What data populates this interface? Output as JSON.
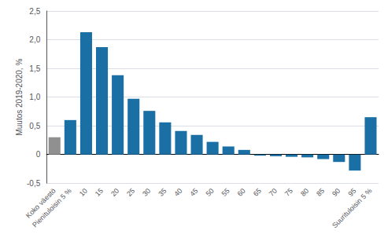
{
  "chart_data": {
    "type": "bar",
    "ylabel": "Muutos 2019-2020, %",
    "categories": [
      "Koko väestö",
      "Pienituloisin 5 %",
      "10",
      "15",
      "20",
      "25",
      "30",
      "35",
      "40",
      "45",
      "50",
      "55",
      "60",
      "65",
      "70",
      "75",
      "80",
      "85",
      "90",
      "95",
      "Suurituloisin 5 %"
    ],
    "values": [
      0.3,
      0.6,
      2.13,
      1.87,
      1.38,
      0.97,
      0.76,
      0.56,
      0.41,
      0.34,
      0.22,
      0.14,
      0.08,
      -0.02,
      -0.03,
      -0.04,
      -0.05,
      -0.08,
      -0.13,
      -0.28,
      0.65
    ],
    "colors": [
      "#909090",
      "#1a6fa5",
      "#1a6fa5",
      "#1a6fa5",
      "#1a6fa5",
      "#1a6fa5",
      "#1a6fa5",
      "#1a6fa5",
      "#1a6fa5",
      "#1a6fa5",
      "#1a6fa5",
      "#1a6fa5",
      "#1a6fa5",
      "#1a6fa5",
      "#1a6fa5",
      "#1a6fa5",
      "#1a6fa5",
      "#1a6fa5",
      "#1a6fa5",
      "#1a6fa5",
      "#1a6fa5"
    ],
    "ylim": [
      -0.5,
      2.5
    ],
    "yticks": [
      {
        "value": -0.5,
        "label": "-0,5"
      },
      0,
      {
        "value": 0.5,
        "label": "0,5"
      },
      {
        "value": 1.0,
        "label": "1,0"
      },
      {
        "value": 1.5,
        "label": "1,5"
      },
      {
        "value": 2.0,
        "label": "2,0"
      },
      {
        "value": 2.5,
        "label": "2,5"
      }
    ],
    "grid": true
  }
}
